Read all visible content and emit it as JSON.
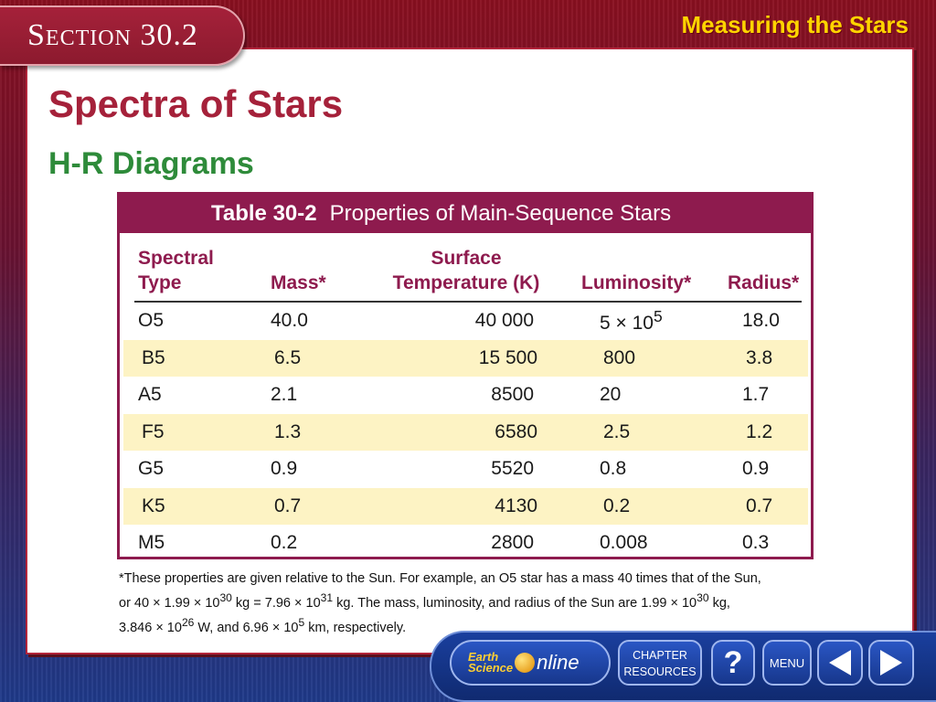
{
  "header": {
    "section_label": "Section 30.2",
    "chapter_title": "Measuring the Stars"
  },
  "main": {
    "title": "Spectra of Stars",
    "subtitle": "H-R Diagrams"
  },
  "table": {
    "number": "Table 30-2",
    "name": "Properties of Main-Sequence Stars",
    "headers": {
      "spectral_type_1": "Spectral",
      "spectral_type_2": "Type",
      "mass": "Mass*",
      "surface_1": "Surface",
      "surface_2": "Temperature (K)",
      "luminosity": "Luminosity*",
      "radius": "Radius*"
    },
    "rows": [
      {
        "type": "O5",
        "mass": "40.0",
        "temp": "40 000",
        "lum_base": "5 × 10",
        "lum_exp": "5",
        "radius": "18.0"
      },
      {
        "type": "B5",
        "mass": "6.5",
        "temp": "15 500",
        "lum_base": "800",
        "lum_exp": "",
        "radius": "3.8"
      },
      {
        "type": "A5",
        "mass": "2.1",
        "temp": "8500",
        "lum_base": "20",
        "lum_exp": "",
        "radius": "1.7"
      },
      {
        "type": "F5",
        "mass": "1.3",
        "temp": "6580",
        "lum_base": "2.5",
        "lum_exp": "",
        "radius": "1.2"
      },
      {
        "type": "G5",
        "mass": "0.9",
        "temp": "5520",
        "lum_base": "0.8",
        "lum_exp": "",
        "radius": "0.9"
      },
      {
        "type": "K5",
        "mass": "0.7",
        "temp": "4130",
        "lum_base": "0.2",
        "lum_exp": "",
        "radius": "0.7"
      },
      {
        "type": "M5",
        "mass": "0.2",
        "temp": "2800",
        "lum_base": "0.008",
        "lum_exp": "",
        "radius": "0.3"
      }
    ]
  },
  "footnote": {
    "line1": "*These properties are given relative to the Sun. For example, an O5 star has a mass 40 times that of the Sun,",
    "line2_a": "or 40 × 1.99 × 10",
    "line2_sup1": "30",
    "line2_b": " kg = 7.96 × 10",
    "line2_sup2": "31",
    "line2_c": " kg. The mass, luminosity, and radius of the Sun are 1.99 × 10",
    "line2_sup3": "30",
    "line2_d": " kg,",
    "line3_a": "3.846 × 10",
    "line3_sup1": "26",
    "line3_b": " W, and 6.96 × 10",
    "line3_sup2": "5",
    "line3_c": " km, respectively."
  },
  "footer": {
    "logo_earth": "Earth",
    "logo_science": "Science",
    "logo_online": "nline",
    "chapter_resources_1": "CHAPTER",
    "chapter_resources_2": "RESOURCES",
    "help": "?",
    "menu": "MENU",
    "prev_icon": "triangle-left-icon",
    "next_icon": "triangle-right-icon"
  },
  "colors": {
    "accent_red": "#a5213a",
    "subtitle_green": "#2e8b3a",
    "table_header": "#8e1b4e",
    "row_highlight": "#fdf3c4",
    "chapter_yellow": "#ffd400"
  }
}
